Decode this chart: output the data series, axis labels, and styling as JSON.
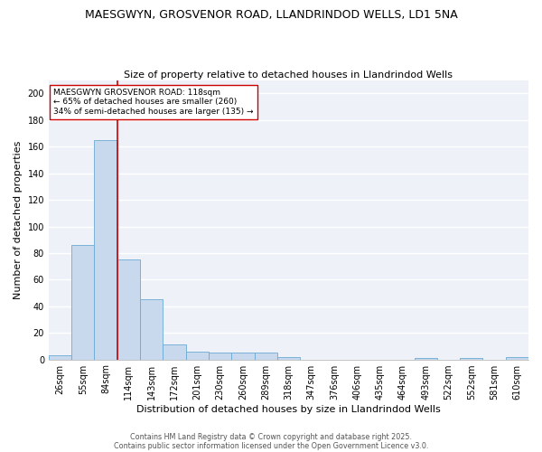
{
  "title1": "MAESGWYN, GROSVENOR ROAD, LLANDRINDOD WELLS, LD1 5NA",
  "title2": "Size of property relative to detached houses in Llandrindod Wells",
  "xlabel": "Distribution of detached houses by size in Llandrindod Wells",
  "ylabel": "Number of detached properties",
  "bar_labels": [
    "26sqm",
    "55sqm",
    "84sqm",
    "114sqm",
    "143sqm",
    "172sqm",
    "201sqm",
    "230sqm",
    "260sqm",
    "289sqm",
    "318sqm",
    "347sqm",
    "376sqm",
    "406sqm",
    "435sqm",
    "464sqm",
    "493sqm",
    "522sqm",
    "552sqm",
    "581sqm",
    "610sqm"
  ],
  "bar_values": [
    3,
    86,
    165,
    75,
    45,
    11,
    6,
    5,
    5,
    5,
    2,
    0,
    0,
    0,
    0,
    0,
    1,
    0,
    1,
    0,
    2
  ],
  "bar_color": "#c8d9ee",
  "bar_edgecolor": "#6aaad4",
  "vline_x_index": 3,
  "vline_color": "#cc0000",
  "annotation_text": "MAESGWYN GROSVENOR ROAD: 118sqm\n← 65% of detached houses are smaller (260)\n34% of semi-detached houses are larger (135) →",
  "annotation_box_facecolor": "white",
  "annotation_box_edgecolor": "#cc0000",
  "annotation_fontsize": 6.5,
  "ylim": [
    0,
    210
  ],
  "yticks": [
    0,
    20,
    40,
    60,
    80,
    100,
    120,
    140,
    160,
    180,
    200
  ],
  "background_color": "#eef2f8",
  "grid_color": "white",
  "title1_fontsize": 9,
  "title2_fontsize": 8,
  "xlabel_fontsize": 8,
  "ylabel_fontsize": 8,
  "tick_fontsize": 7,
  "footer1": "Contains HM Land Registry data © Crown copyright and database right 2025.",
  "footer2": "Contains public sector information licensed under the Open Government Licence v3.0.",
  "footer_fontsize": 5.8
}
